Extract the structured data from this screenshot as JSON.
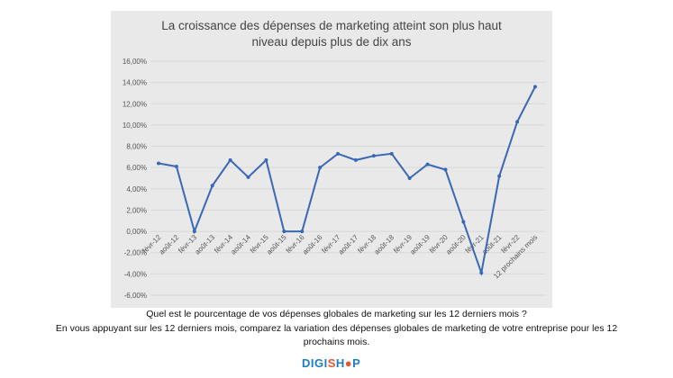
{
  "chart_data": {
    "type": "line",
    "title": "La croissance des dépenses de marketing atteint son plus haut niveau depuis plus de dix ans",
    "title_lines": [
      "La croissance des dépenses de marketing atteint son plus haut",
      "niveau depuis plus de dix ans"
    ],
    "categories": [
      "févr-12",
      "août-12",
      "févr-13",
      "août-13",
      "févr-14",
      "août-14",
      "févr-15",
      "août-15",
      "févr-16",
      "août-16",
      "févr-17",
      "août-17",
      "févr-18",
      "août-18",
      "févr-19",
      "août-19",
      "févr-20",
      "août-20",
      "févr-21",
      "août-21",
      "févr-22",
      "12 prochains mois"
    ],
    "values": [
      6.4,
      6.1,
      0.0,
      4.3,
      6.7,
      5.1,
      6.7,
      0.0,
      0.0,
      6.0,
      7.3,
      6.7,
      7.1,
      7.3,
      5.0,
      6.3,
      5.8,
      0.9,
      -3.9,
      5.2,
      10.3,
      13.6
    ],
    "ylim": [
      -6,
      16
    ],
    "yticks": [
      "-6,00%",
      "-4,00%",
      "-2,00%",
      "0,00%",
      "2,00%",
      "4,00%",
      "6,00%",
      "8,00%",
      "10,00%",
      "12,00%",
      "14,00%",
      "16,00%"
    ],
    "ytick_values": [
      -6,
      -4,
      -2,
      0,
      2,
      4,
      6,
      8,
      10,
      12,
      14,
      16
    ],
    "grid": true,
    "line_color": "#3a68b4"
  },
  "questions": [
    "Quel est le pourcentage de vos dépenses globales de marketing sur les 12 derniers mois ?",
    "En vous appuyant sur les 12 derniers mois, comparez la variation des dépenses globales de marketing de votre entreprise pour les 12",
    "prochains mois."
  ],
  "logo": {
    "text": "DigiShop",
    "colors": {
      "primary": "#1d7fc1",
      "accent": "#e4572e"
    }
  }
}
